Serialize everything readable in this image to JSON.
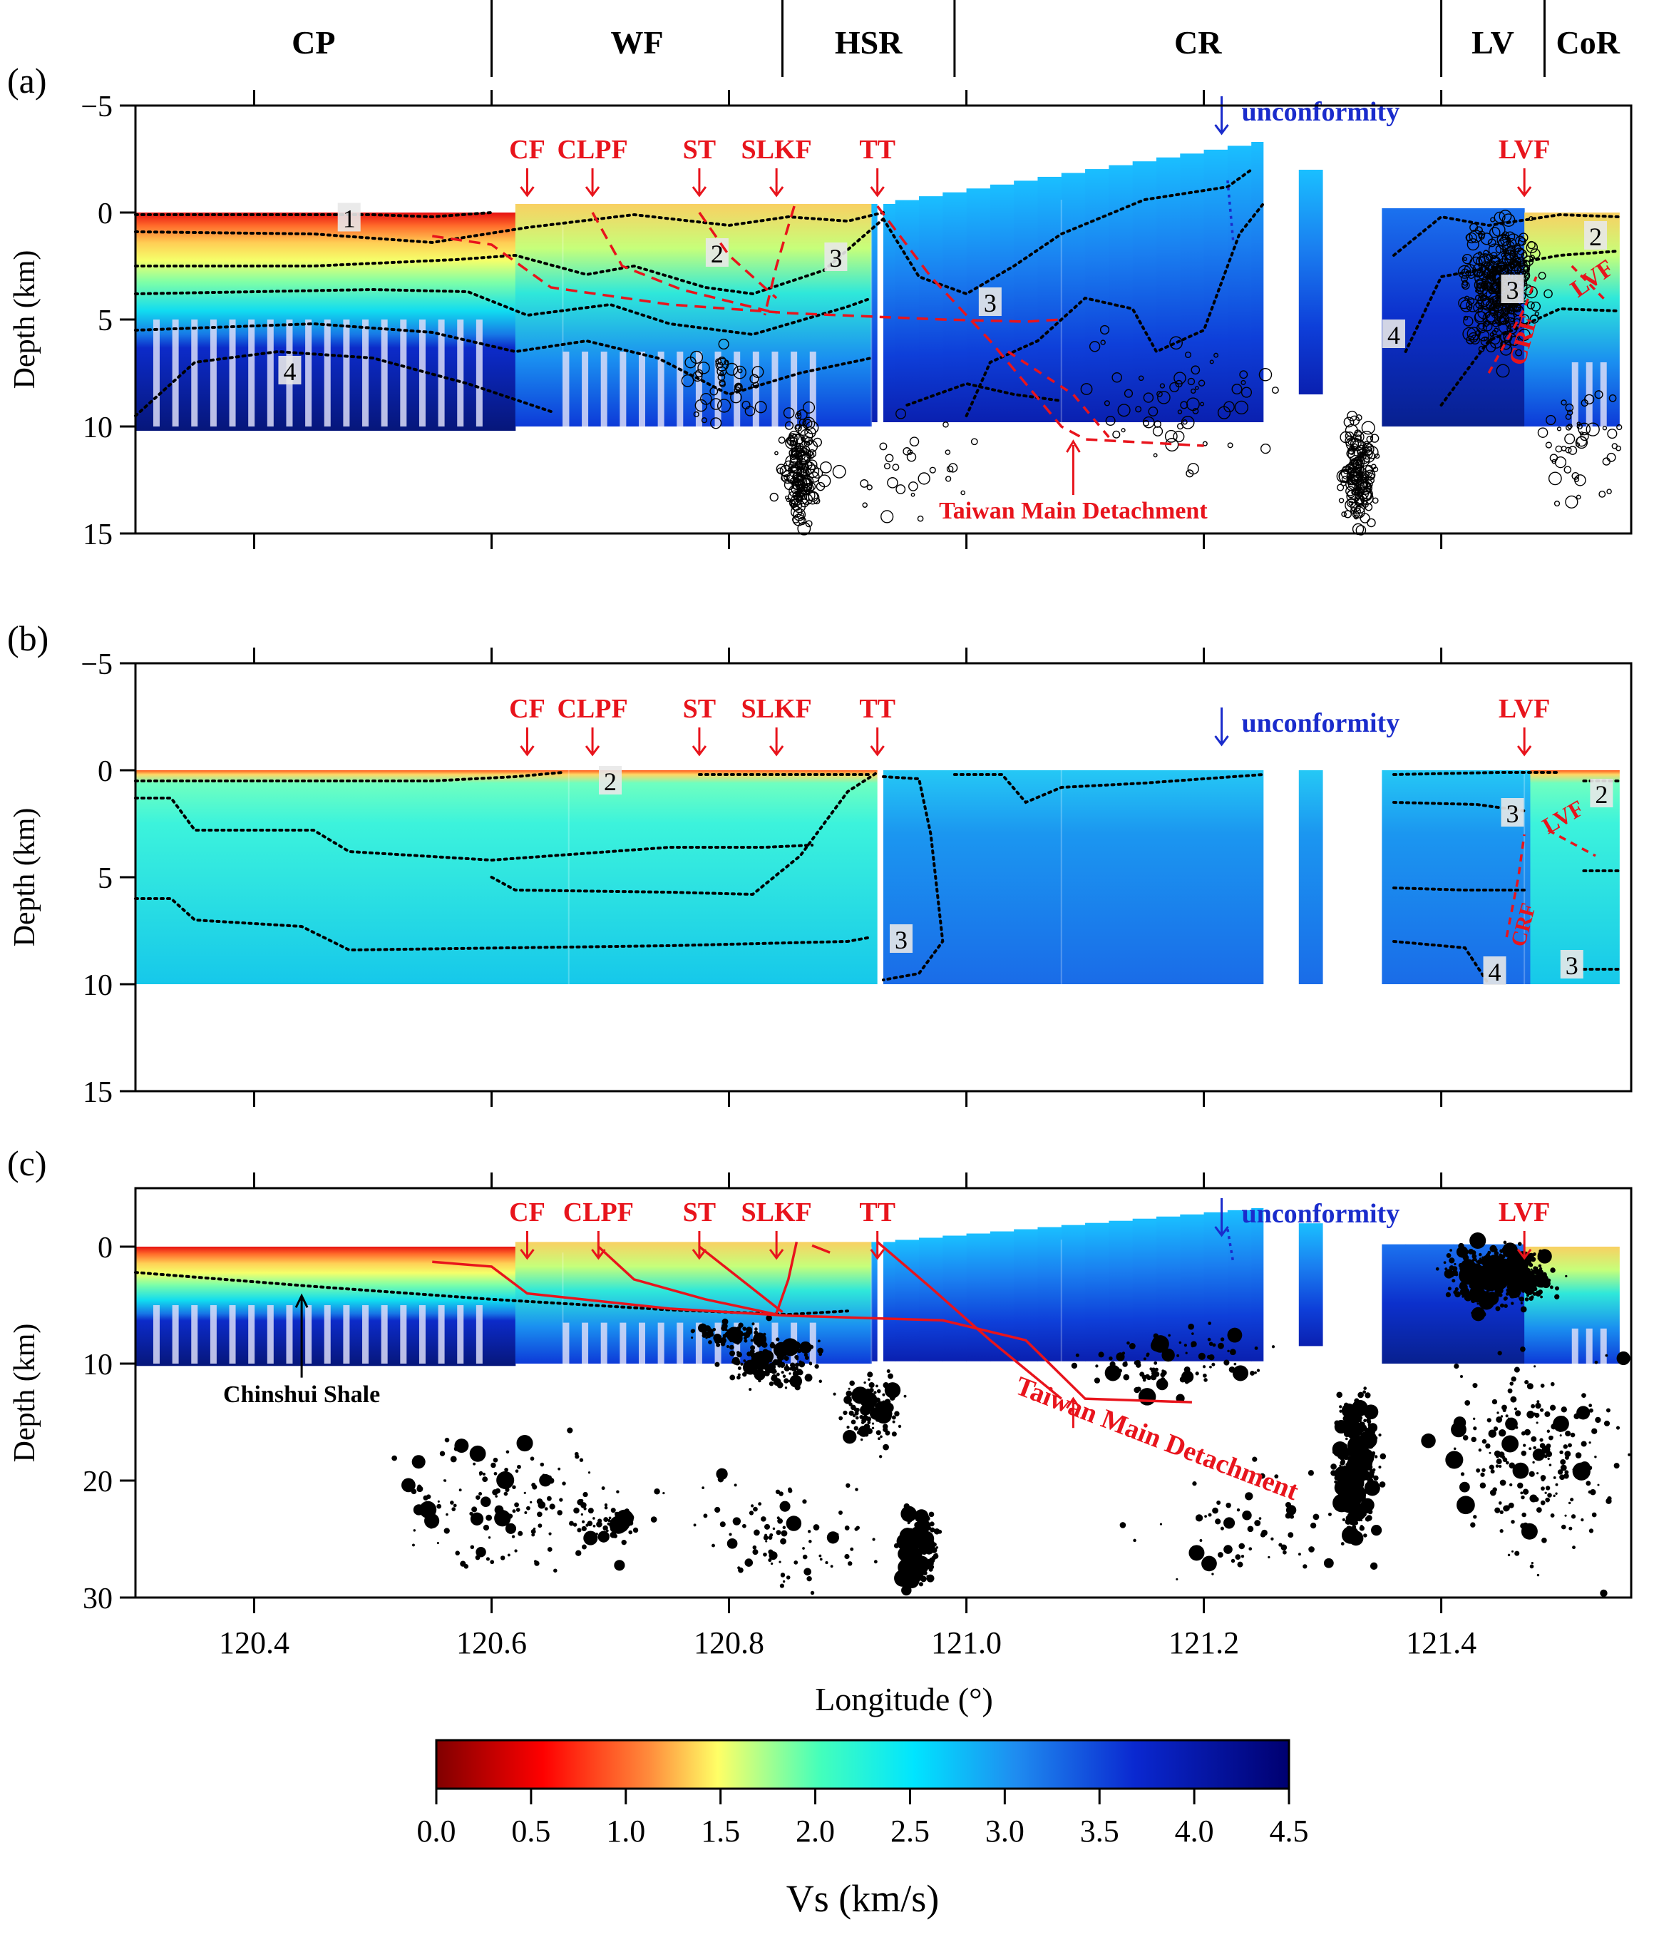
{
  "colors": {
    "fault": "#e8141c",
    "unconformity": "#1a2ccc",
    "contour": "#000000",
    "frame": "#000000"
  },
  "regions": [
    "CP",
    "WF",
    "HSR",
    "CR",
    "LV",
    "CoR"
  ],
  "region_bounds": [
    120.3,
    120.6,
    120.845,
    120.99,
    121.4,
    121.487,
    121.56
  ],
  "chart_data": {
    "type": "heatmap",
    "xlabel": "Longitude (°)",
    "xlim": [
      120.3,
      121.56
    ],
    "xticks": [
      "120.4",
      "120.6",
      "120.8",
      "121.0",
      "121.2",
      "121.4"
    ],
    "xtick_values": [
      120.4,
      120.6,
      120.8,
      121.0,
      121.2,
      121.4
    ],
    "colorbar": {
      "label": "Vs (km/s)",
      "min": 0,
      "max": 4.5,
      "ticks": [
        "0.0",
        "0.5",
        "1.0",
        "1.5",
        "2.0",
        "2.5",
        "3.0",
        "3.5",
        "4.0",
        "4.5"
      ],
      "colormap": [
        "#800000",
        "#ff0000",
        "#ff8c3c",
        "#ffff66",
        "#44ffbb",
        "#00e5ff",
        "#1f8cf0",
        "#0a28d0",
        "#000070"
      ]
    },
    "panels": [
      {
        "label": "(a)",
        "ylabel": "Depth (km)",
        "ylim": [
          -5,
          15
        ],
        "yticks": [
          "−5",
          "0",
          "5",
          "10",
          "15"
        ],
        "ytick_values": [
          -5,
          0,
          5,
          10,
          15
        ],
        "faults": [
          "CF",
          "CLPF",
          "ST",
          "SLKF",
          "TT",
          "LVF"
        ],
        "fault_lon": [
          120.63,
          120.685,
          120.775,
          120.84,
          120.925,
          121.47
        ],
        "unconformity": "unconformity",
        "detachment": "Taiwan Main Detachment",
        "contour_labels": [
          "1",
          "2",
          "3",
          "3",
          "4",
          "4",
          "2",
          "3"
        ],
        "fault_labels": [
          "CRF",
          "LVF"
        ]
      },
      {
        "label": "(b)",
        "ylabel": "Depth (km)",
        "ylim": [
          -5,
          15
        ],
        "yticks": [
          "−5",
          "0",
          "5",
          "10",
          "15"
        ],
        "ytick_values": [
          -5,
          0,
          5,
          10,
          15
        ],
        "faults": [
          "CF",
          "CLPF",
          "ST",
          "SLKF",
          "TT",
          "LVF"
        ],
        "fault_lon": [
          120.63,
          120.685,
          120.775,
          120.84,
          120.925,
          121.47
        ],
        "unconformity": "unconformity",
        "contour_labels": [
          "2",
          "3",
          "3",
          "2",
          "4",
          "3"
        ],
        "fault_labels": [
          "CRF",
          "LVF"
        ]
      },
      {
        "label": "(c)",
        "ylabel": "Depth (km)",
        "ylim": [
          -5,
          30
        ],
        "yticks": [
          "0",
          "10",
          "20",
          "30"
        ],
        "ytick_values": [
          0,
          10,
          20,
          30
        ],
        "faults": [
          "CF",
          "CLPF",
          "ST",
          "SLKF",
          "TT",
          "LVF"
        ],
        "fault_lon": [
          120.63,
          120.69,
          120.775,
          120.84,
          120.925,
          121.47
        ],
        "unconformity": "unconformity",
        "detachment": "Taiwan Main Detachment",
        "shale": "Chinshui Shale"
      }
    ]
  }
}
